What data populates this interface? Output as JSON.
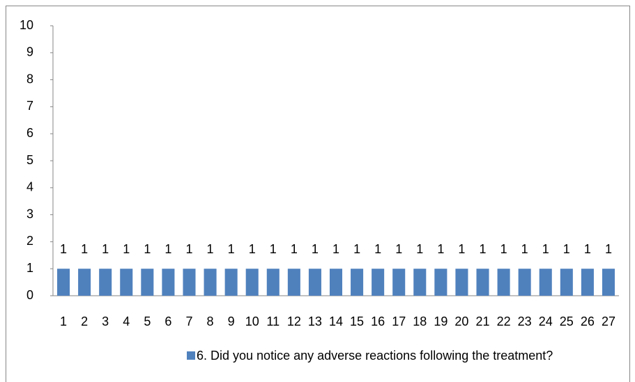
{
  "chart_data": {
    "type": "bar",
    "categories": [
      "1",
      "2",
      "3",
      "4",
      "5",
      "6",
      "7",
      "8",
      "9",
      "10",
      "11",
      "12",
      "13",
      "14",
      "15",
      "16",
      "17",
      "18",
      "19",
      "20",
      "21",
      "22",
      "23",
      "24",
      "25",
      "26",
      "27"
    ],
    "series": [
      {
        "name": "6. Did you notice any adverse reactions following the treatment?",
        "color": "#4f81bd",
        "values": [
          1,
          1,
          1,
          1,
          1,
          1,
          1,
          1,
          1,
          1,
          1,
          1,
          1,
          1,
          1,
          1,
          1,
          1,
          1,
          1,
          1,
          1,
          1,
          1,
          1,
          1,
          1
        ]
      }
    ],
    "ylim": [
      0,
      10
    ],
    "yticks": [
      0,
      1,
      2,
      3,
      4,
      5,
      6,
      7,
      8,
      9,
      10
    ],
    "grid": false,
    "legend": "bottom"
  }
}
